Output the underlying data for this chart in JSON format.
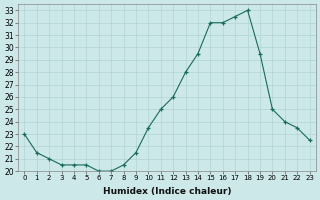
{
  "x": [
    0,
    1,
    2,
    3,
    4,
    5,
    6,
    7,
    8,
    9,
    10,
    11,
    12,
    13,
    14,
    15,
    16,
    17,
    18,
    19,
    20,
    21,
    22,
    23
  ],
  "y": [
    23.0,
    21.5,
    21.0,
    20.5,
    20.5,
    20.5,
    20.0,
    20.0,
    20.5,
    21.5,
    23.5,
    25.0,
    26.0,
    28.0,
    29.5,
    32.0,
    32.0,
    32.5,
    33.0,
    29.5,
    25.0,
    24.0,
    23.5,
    22.5
  ],
  "xlabel": "Humidex (Indice chaleur)",
  "line_color": "#1a6b5a",
  "marker": "+",
  "marker_color": "#1a6b5a",
  "bg_color": "#cce8e8",
  "grid_color": "#b0d4d4",
  "xlim": [
    -0.5,
    23.5
  ],
  "ylim": [
    20,
    33.5
  ],
  "yticks": [
    20,
    21,
    22,
    23,
    24,
    25,
    26,
    27,
    28,
    29,
    30,
    31,
    32,
    33
  ],
  "xticks": [
    0,
    1,
    2,
    3,
    4,
    5,
    6,
    7,
    8,
    9,
    10,
    11,
    12,
    13,
    14,
    15,
    16,
    17,
    18,
    19,
    20,
    21,
    22,
    23
  ],
  "xtick_labels": [
    "0",
    "1",
    "2",
    "3",
    "4",
    "5",
    "6",
    "7",
    "8",
    "9",
    "10",
    "11",
    "12",
    "13",
    "14",
    "15",
    "16",
    "17",
    "18",
    "19",
    "20",
    "21",
    "22",
    "23"
  ]
}
